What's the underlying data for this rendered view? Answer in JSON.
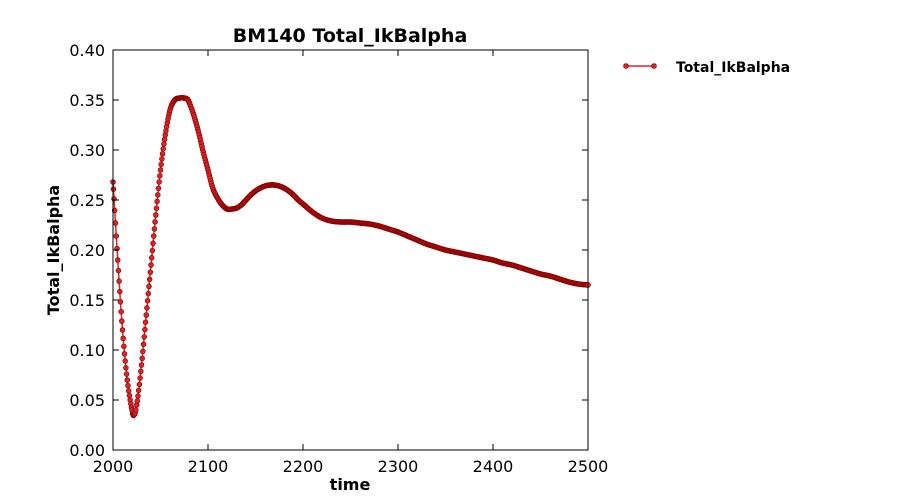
{
  "chart_data": {
    "type": "line",
    "title": "BM140 Total_IkBalpha",
    "xlabel": "time",
    "ylabel": "Total_IkBalpha",
    "xlim": [
      2000,
      2500
    ],
    "ylim": [
      0.0,
      0.4
    ],
    "xticks": [
      2000,
      2100,
      2200,
      2300,
      2400,
      2500
    ],
    "yticks": [
      0.0,
      0.05,
      0.1,
      0.15,
      0.2,
      0.25,
      0.3,
      0.35,
      0.4
    ],
    "ytick_labels": [
      "0.00",
      "0.05",
      "0.10",
      "0.15",
      "0.20",
      "0.25",
      "0.30",
      "0.35",
      "0.40"
    ],
    "xtick_labels": [
      "2000",
      "2100",
      "2200",
      "2300",
      "2400",
      "2500"
    ],
    "grid": false,
    "legend": {
      "placement": "outside-top-right"
    },
    "colors": {
      "line": "#d62728",
      "marker": "#8b0000",
      "axes": "#000000"
    },
    "series": [
      {
        "name": "Total_IkBalpha",
        "x": [
          2000,
          2005,
          2010,
          2015,
          2020,
          2022,
          2025,
          2030,
          2035,
          2040,
          2045,
          2050,
          2055,
          2060,
          2065,
          2070,
          2075,
          2078,
          2080,
          2085,
          2090,
          2095,
          2100,
          2105,
          2110,
          2115,
          2120,
          2125,
          2130,
          2135,
          2140,
          2145,
          2150,
          2155,
          2160,
          2165,
          2170,
          2175,
          2180,
          2185,
          2190,
          2195,
          2200,
          2210,
          2220,
          2230,
          2240,
          2250,
          2260,
          2270,
          2280,
          2290,
          2300,
          2310,
          2320,
          2330,
          2340,
          2350,
          2360,
          2370,
          2380,
          2390,
          2400,
          2410,
          2420,
          2430,
          2440,
          2450,
          2460,
          2470,
          2480,
          2490,
          2500
        ],
        "y": [
          0.268,
          0.19,
          0.12,
          0.07,
          0.04,
          0.035,
          0.045,
          0.085,
          0.135,
          0.185,
          0.235,
          0.28,
          0.315,
          0.34,
          0.35,
          0.352,
          0.352,
          0.351,
          0.348,
          0.335,
          0.318,
          0.298,
          0.28,
          0.262,
          0.252,
          0.245,
          0.241,
          0.241,
          0.242,
          0.245,
          0.25,
          0.255,
          0.259,
          0.262,
          0.264,
          0.265,
          0.265,
          0.264,
          0.262,
          0.259,
          0.255,
          0.25,
          0.246,
          0.238,
          0.232,
          0.229,
          0.228,
          0.228,
          0.227,
          0.226,
          0.224,
          0.221,
          0.218,
          0.214,
          0.21,
          0.206,
          0.203,
          0.2,
          0.198,
          0.196,
          0.194,
          0.192,
          0.19,
          0.187,
          0.185,
          0.182,
          0.179,
          0.176,
          0.174,
          0.171,
          0.168,
          0.166,
          0.165
        ]
      }
    ]
  }
}
